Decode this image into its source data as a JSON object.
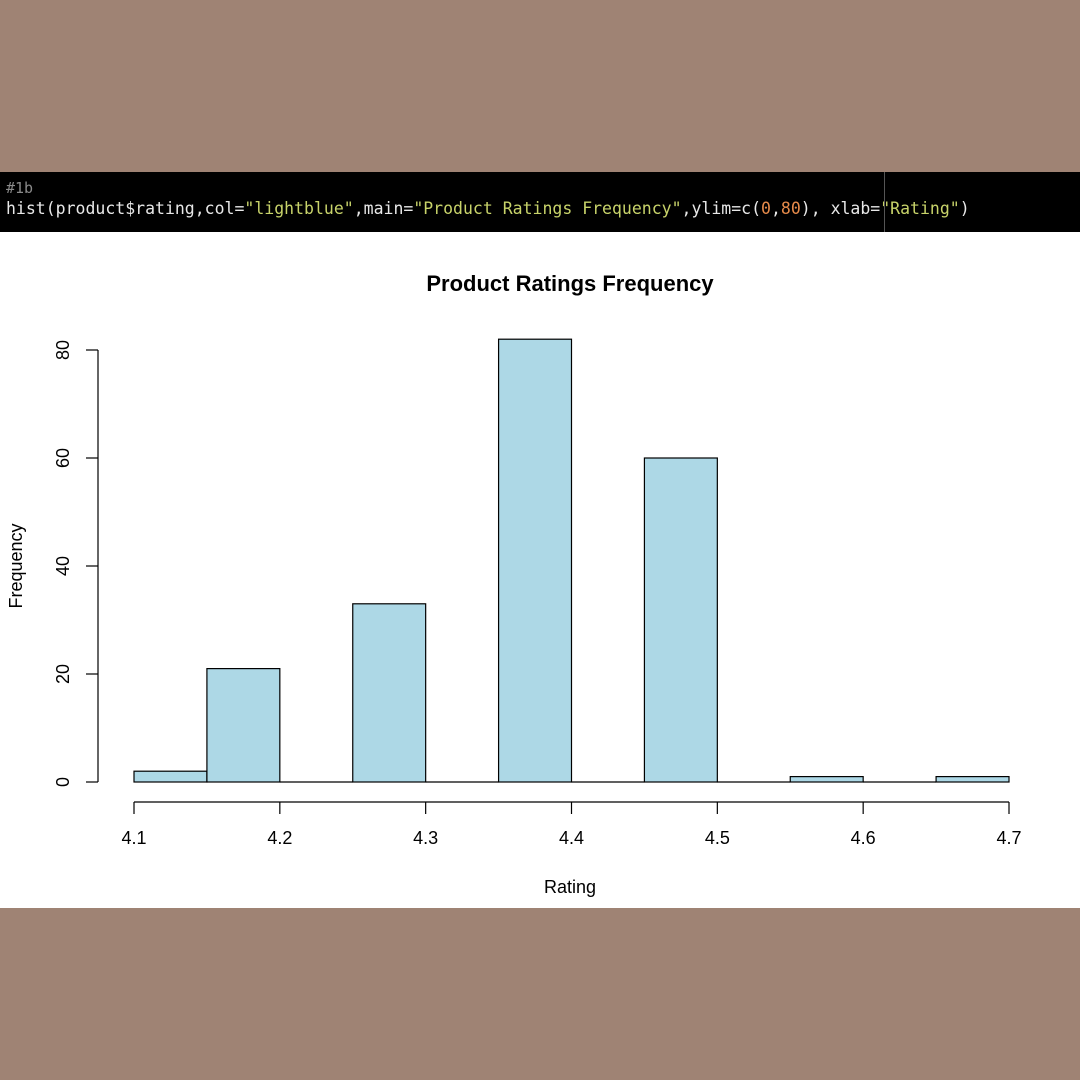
{
  "code": {
    "comment": "#1b",
    "tokens": [
      {
        "text": "hist(product$rating,col=",
        "kind": "default"
      },
      {
        "text": "\"lightblue\"",
        "kind": "string"
      },
      {
        "text": ",main=",
        "kind": "default"
      },
      {
        "text": "\"Product Ratings Frequency\"",
        "kind": "string"
      },
      {
        "text": ",ylim=c(",
        "kind": "default"
      },
      {
        "text": "0",
        "kind": "number"
      },
      {
        "text": ",",
        "kind": "default"
      },
      {
        "text": "80",
        "kind": "number"
      },
      {
        "text": "), xlab=",
        "kind": "default"
      },
      {
        "text": "\"Rating\"",
        "kind": "string"
      },
      {
        "text": ")",
        "kind": "default"
      }
    ]
  },
  "chart_data": {
    "type": "bar",
    "title": "Product Ratings Frequency",
    "xlabel": "Rating",
    "ylabel": "Frequency",
    "bar_color": "#add8e6",
    "bins": [
      {
        "start": 4.1,
        "end": 4.15,
        "count": 2
      },
      {
        "start": 4.15,
        "end": 4.2,
        "count": 21
      },
      {
        "start": 4.2,
        "end": 4.25,
        "count": 0
      },
      {
        "start": 4.25,
        "end": 4.3,
        "count": 33
      },
      {
        "start": 4.3,
        "end": 4.35,
        "count": 0
      },
      {
        "start": 4.35,
        "end": 4.4,
        "count": 82
      },
      {
        "start": 4.4,
        "end": 4.45,
        "count": 0
      },
      {
        "start": 4.45,
        "end": 4.5,
        "count": 60
      },
      {
        "start": 4.5,
        "end": 4.55,
        "count": 0
      },
      {
        "start": 4.55,
        "end": 4.6,
        "count": 1
      },
      {
        "start": 4.6,
        "end": 4.65,
        "count": 0
      },
      {
        "start": 4.65,
        "end": 4.7,
        "count": 1
      }
    ],
    "xlim": [
      4.1,
      4.7
    ],
    "ylim": [
      0,
      80
    ],
    "x_ticks": [
      "4.1",
      "4.2",
      "4.3",
      "4.4",
      "4.5",
      "4.6",
      "4.7"
    ],
    "y_ticks": [
      "0",
      "20",
      "40",
      "60",
      "80"
    ],
    "grid": false
  }
}
